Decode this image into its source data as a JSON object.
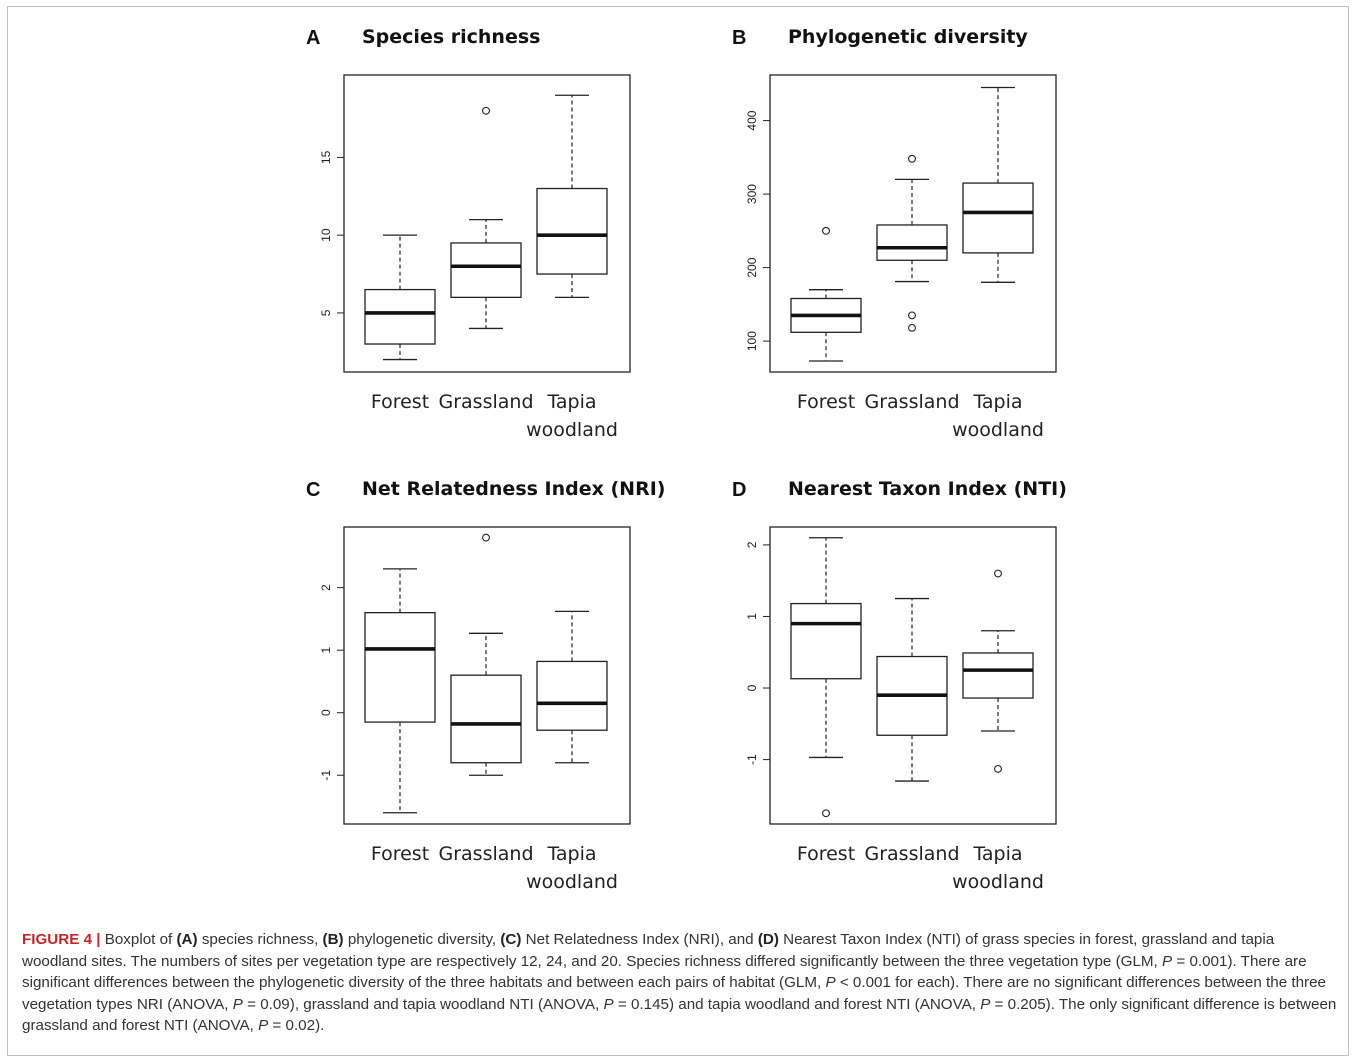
{
  "chart_data": [
    {
      "type": "boxplot",
      "panel": "A",
      "title": "Species richness",
      "categories": [
        "Forest",
        "Grassland",
        "Tapia\nwoodland"
      ],
      "yticks": [
        5,
        10,
        15
      ],
      "ylim": [
        1.2,
        20.3
      ],
      "boxes": [
        {
          "min": 2,
          "q1": 3,
          "median": 5,
          "q3": 6.5,
          "max": 10,
          "outliers": []
        },
        {
          "min": 4,
          "q1": 6,
          "median": 8,
          "q3": 9.5,
          "max": 11,
          "outliers": [
            18
          ]
        },
        {
          "min": 6,
          "q1": 7.5,
          "median": 10,
          "q3": 13,
          "max": 19,
          "outliers": []
        }
      ]
    },
    {
      "type": "boxplot",
      "panel": "B",
      "title": "Phylogenetic diversity",
      "categories": [
        "Forest",
        "Grassland",
        "Tapia\nwoodland"
      ],
      "yticks": [
        100,
        200,
        300,
        400
      ],
      "ylim": [
        58,
        462
      ],
      "boxes": [
        {
          "min": 73,
          "q1": 112,
          "median": 135,
          "q3": 158,
          "max": 170,
          "outliers": [
            250
          ]
        },
        {
          "min": 181,
          "q1": 210,
          "median": 227,
          "q3": 258,
          "max": 320,
          "outliers": [
            348,
            135,
            118
          ]
        },
        {
          "min": 180,
          "q1": 220,
          "median": 275,
          "q3": 315,
          "max": 445,
          "outliers": []
        }
      ]
    },
    {
      "type": "boxplot",
      "panel": "C",
      "title": "Net Relatedness Index (NRI)",
      "categories": [
        "Forest",
        "Grassland",
        "Tapia\nwoodland"
      ],
      "yticks": [
        -1,
        0,
        1,
        2
      ],
      "ylim": [
        -1.78,
        2.97
      ],
      "boxes": [
        {
          "min": -1.6,
          "q1": -0.15,
          "median": 1.02,
          "q3": 1.6,
          "max": 2.3,
          "outliers": []
        },
        {
          "min": -1.0,
          "q1": -0.8,
          "median": -0.18,
          "q3": 0.6,
          "max": 1.27,
          "outliers": [
            2.8
          ]
        },
        {
          "min": -0.8,
          "q1": -0.28,
          "median": 0.15,
          "q3": 0.82,
          "max": 1.62,
          "outliers": []
        }
      ]
    },
    {
      "type": "boxplot",
      "panel": "D",
      "title": "Nearest Taxon Index (NTI)",
      "categories": [
        "Forest",
        "Grassland",
        "Tapia\nwoodland"
      ],
      "yticks": [
        -1,
        0,
        1,
        2
      ],
      "ylim": [
        -1.9,
        2.25
      ],
      "boxes": [
        {
          "min": -0.97,
          "q1": 0.13,
          "median": 0.9,
          "q3": 1.18,
          "max": 2.1,
          "outliers": [
            -1.75
          ]
        },
        {
          "min": -1.3,
          "q1": -0.66,
          "median": -0.1,
          "q3": 0.44,
          "max": 1.25,
          "outliers": []
        },
        {
          "min": -0.6,
          "q1": -0.14,
          "median": 0.25,
          "q3": 0.49,
          "max": 0.8,
          "outliers": [
            1.6,
            -1.13
          ]
        }
      ]
    }
  ],
  "caption": {
    "label": "FIGURE 4 |",
    "segments": [
      {
        "t": " Boxplot of "
      },
      {
        "t": "(A)",
        "b": true
      },
      {
        "t": " species richness, "
      },
      {
        "t": "(B)",
        "b": true
      },
      {
        "t": " phylogenetic diversity, "
      },
      {
        "t": "(C)",
        "b": true
      },
      {
        "t": " Net Relatedness Index (NRI), and "
      },
      {
        "t": "(D)",
        "b": true
      },
      {
        "t": " Nearest Taxon Index (NTI) of grass species in forest, grassland and tapia woodland sites. The numbers of sites per vegetation type are respectively 12, 24, and 20. Species richness differed significantly between the three vegetation type (GLM, "
      },
      {
        "t": "P",
        "i": true
      },
      {
        "t": " = 0.001). There are significant differences between the phylogenetic diversity of the three habitats and between each pairs of habitat (GLM, "
      },
      {
        "t": "P",
        "i": true
      },
      {
        "t": " < 0.001 for each). There are no significant differences between the three vegetation types NRI (ANOVA, "
      },
      {
        "t": "P",
        "i": true
      },
      {
        "t": " = 0.09), grassland and tapia woodland NTI (ANOVA, "
      },
      {
        "t": "P",
        "i": true
      },
      {
        "t": " = 0.145) and tapia woodland and forest NTI (ANOVA, "
      },
      {
        "t": "P",
        "i": true
      },
      {
        "t": " = 0.205). The only significant difference is between grassland and forest NTI (ANOVA, "
      },
      {
        "t": "P",
        "i": true
      },
      {
        "t": " = 0.02)."
      }
    ]
  }
}
